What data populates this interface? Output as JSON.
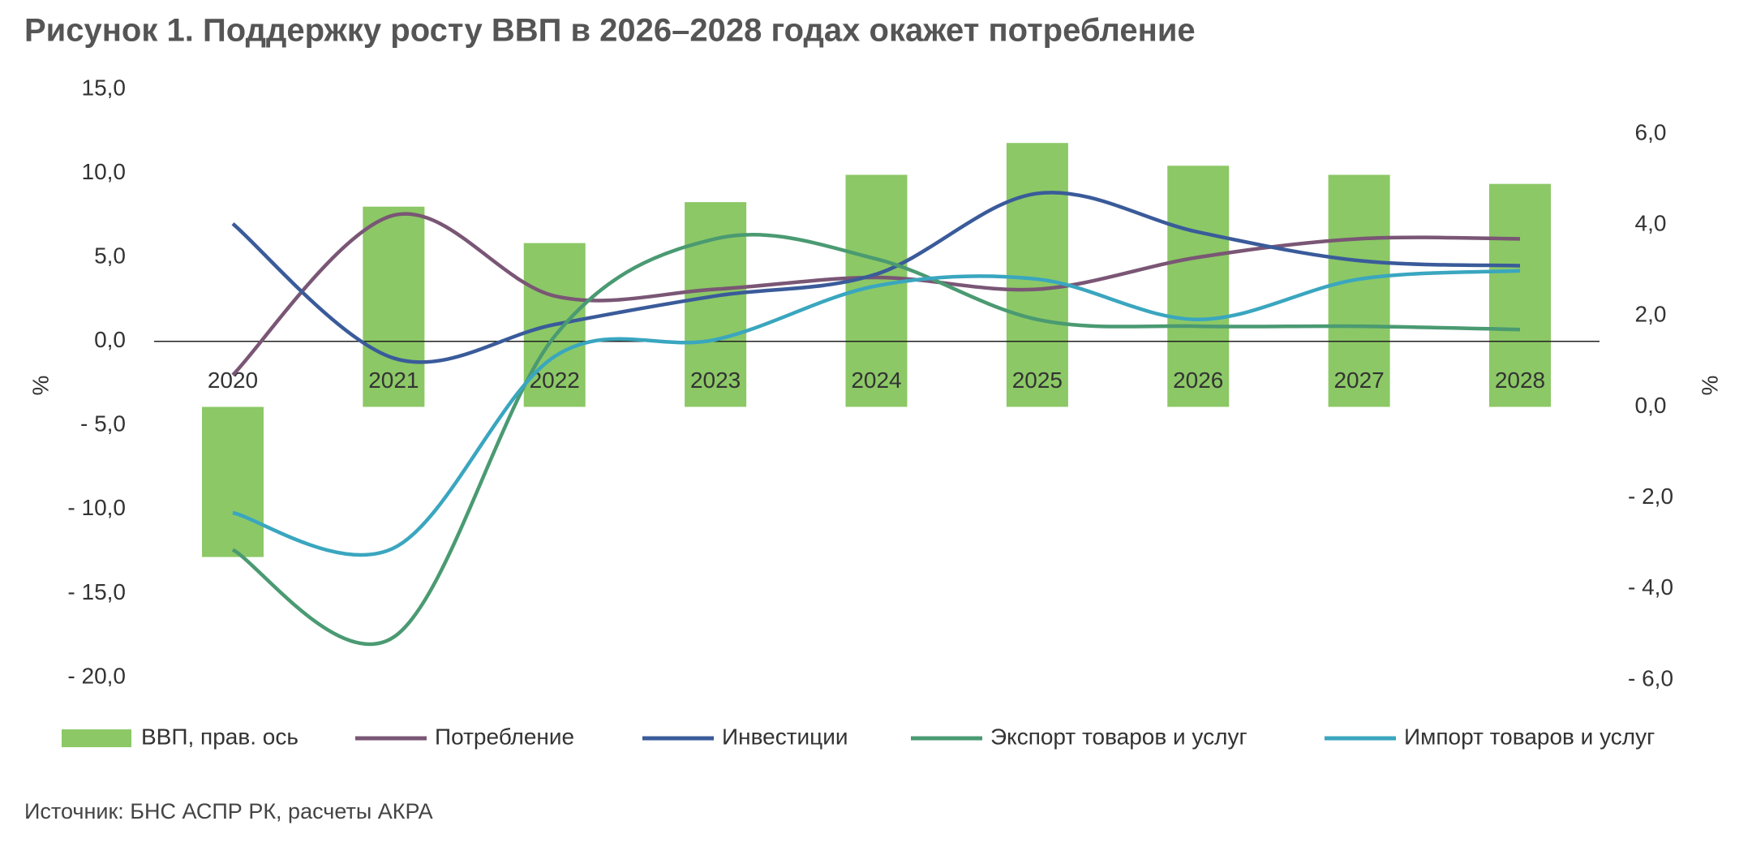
{
  "chart_data": {
    "type": "combo",
    "title": "Рисунок 1. Поддержку росту ВВП в 2026–2028 годах окажет потребление",
    "source": "Источник: БНС АСПР РК, расчеты АКРА",
    "ylabel": "%",
    "y2label": "%",
    "categories": [
      "2020",
      "2021",
      "2022",
      "2023",
      "2024",
      "2025",
      "2026",
      "2027",
      "2028"
    ],
    "series": [
      {
        "name": "ВВП, прав. ось",
        "type": "bar",
        "axis": "y2",
        "color": "#8cc866",
        "values": [
          -3.3,
          4.4,
          3.6,
          4.5,
          5.1,
          5.8,
          5.3,
          5.1,
          4.9
        ]
      },
      {
        "name": "Потребление",
        "type": "line",
        "color": "#7a5675",
        "values": [
          -2.0,
          7.5,
          2.7,
          3.1,
          3.8,
          3.1,
          5.0,
          6.1,
          6.1
        ]
      },
      {
        "name": "Инвестиции",
        "type": "line",
        "color": "#3a5b9a",
        "values": [
          7.0,
          -1.0,
          1.0,
          2.7,
          4.0,
          8.8,
          6.5,
          4.8,
          4.5
        ]
      },
      {
        "name": "Экспорт товаров и услуг",
        "type": "line",
        "color": "#4a9a72",
        "values": [
          -12.4,
          -17.6,
          0.3,
          6.1,
          4.9,
          1.3,
          0.9,
          0.9,
          0.7
        ]
      },
      {
        "name": "Импорт товаров и услуг",
        "type": "line",
        "color": "#3aa6bf",
        "values": [
          -10.2,
          -12.3,
          -0.9,
          0.1,
          3.3,
          3.7,
          1.3,
          3.7,
          4.2
        ]
      }
    ],
    "ylim": [
      -20,
      15
    ],
    "yticks": [
      {
        "value": -20,
        "label": "- 20,0"
      },
      {
        "value": -15,
        "label": "- 15,0"
      },
      {
        "value": -10,
        "label": "- 10,0"
      },
      {
        "value": -5,
        "label": "- 5,0"
      },
      {
        "value": 0,
        "label": "0,0"
      },
      {
        "value": 5,
        "label": "5,0"
      },
      {
        "value": 10,
        "label": "10,0"
      },
      {
        "value": 15,
        "label": "15,0"
      }
    ],
    "y2lim": [
      -6,
      6
    ],
    "y2ticks": [
      {
        "value": -6,
        "label": "- 6,0"
      },
      {
        "value": -4,
        "label": "- 4,0"
      },
      {
        "value": -2,
        "label": "- 2,0"
      },
      {
        "value": 0,
        "label": "0,0"
      },
      {
        "value": 2,
        "label": "2,0"
      },
      {
        "value": 4,
        "label": "4,0"
      },
      {
        "value": 6,
        "label": "6,0"
      }
    ],
    "grid": false,
    "legend": "bottom"
  }
}
